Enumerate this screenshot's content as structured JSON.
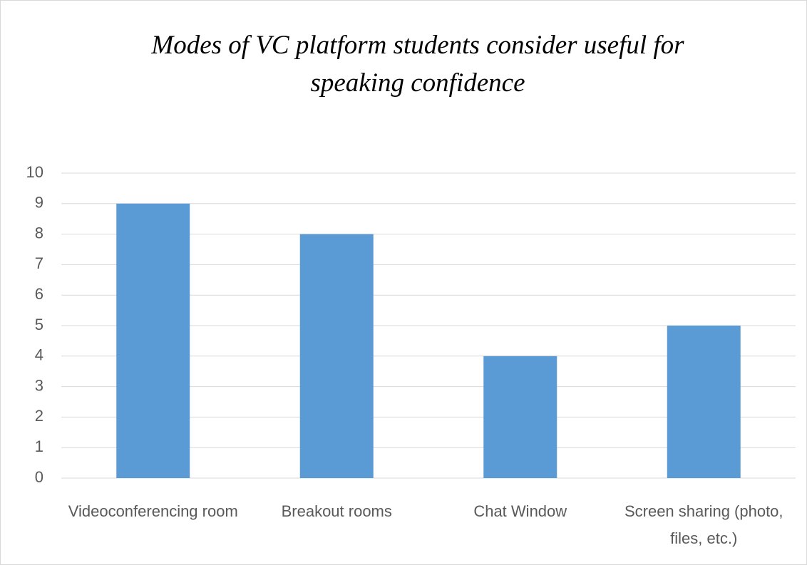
{
  "chart_data": {
    "type": "bar",
    "title": "Modes of VC platform students consider useful for speaking confidence",
    "categories": [
      "Videoconferencing room",
      "Breakout rooms",
      "Chat Window",
      "Screen sharing (photo, files, etc.)"
    ],
    "values": [
      9,
      8,
      4,
      5
    ],
    "color": "#5b9bd5",
    "ylim": [
      0,
      10
    ],
    "yticks": [
      0,
      1,
      2,
      3,
      4,
      5,
      6,
      7,
      8,
      9,
      10
    ],
    "grid": true
  }
}
